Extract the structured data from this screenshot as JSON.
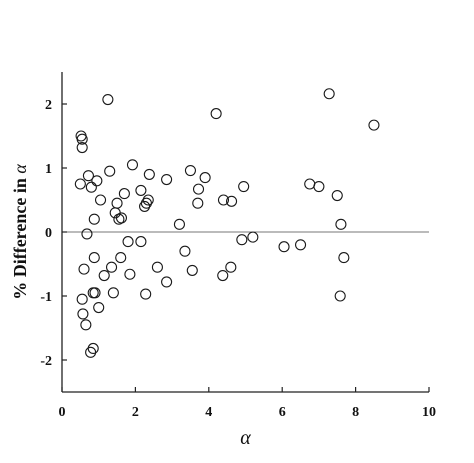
{
  "chart_data": {
    "type": "scatter",
    "title": "",
    "xlabel": "α",
    "ylabel_text": "% Difference in ",
    "ylabel_symbol": "α",
    "xlim": [
      0,
      10
    ],
    "ylim": [
      -2.5,
      2.5
    ],
    "xticks": [
      0,
      2,
      4,
      6,
      8,
      10
    ],
    "yticks": [
      2,
      1,
      0,
      -1,
      -2
    ],
    "xtick_labels": [
      "0",
      "2",
      "4",
      "6",
      "8",
      "10"
    ],
    "ytick_labels": [
      "2",
      "1",
      "0",
      "-1",
      "-2"
    ],
    "reference_line_y": 0,
    "grid": false,
    "legend": false,
    "marker": "open-circle",
    "colors": {
      "marker": "#1a1a1a",
      "axis": "#222222",
      "reference_line": "#777777"
    },
    "points": [
      {
        "x": 0.52,
        "y": 1.5
      },
      {
        "x": 0.55,
        "y": 1.45
      },
      {
        "x": 0.55,
        "y": 1.32
      },
      {
        "x": 0.5,
        "y": 0.75
      },
      {
        "x": 0.72,
        "y": 0.88
      },
      {
        "x": 0.8,
        "y": 0.7
      },
      {
        "x": 0.95,
        "y": 0.8
      },
      {
        "x": 1.25,
        "y": 2.07
      },
      {
        "x": 1.05,
        "y": 0.5
      },
      {
        "x": 1.3,
        "y": 0.95
      },
      {
        "x": 1.5,
        "y": 0.45
      },
      {
        "x": 1.7,
        "y": 0.6
      },
      {
        "x": 1.45,
        "y": 0.3
      },
      {
        "x": 1.55,
        "y": 0.2
      },
      {
        "x": 1.62,
        "y": 0.22
      },
      {
        "x": 0.88,
        "y": 0.2
      },
      {
        "x": 0.68,
        "y": -0.03
      },
      {
        "x": 1.92,
        "y": 1.05
      },
      {
        "x": 2.15,
        "y": 0.65
      },
      {
        "x": 2.25,
        "y": 0.4
      },
      {
        "x": 2.3,
        "y": 0.45
      },
      {
        "x": 2.35,
        "y": 0.5
      },
      {
        "x": 2.38,
        "y": 0.9
      },
      {
        "x": 2.85,
        "y": 0.82
      },
      {
        "x": 1.8,
        "y": -0.15
      },
      {
        "x": 2.15,
        "y": -0.15
      },
      {
        "x": 1.6,
        "y": -0.4
      },
      {
        "x": 1.35,
        "y": -0.55
      },
      {
        "x": 1.15,
        "y": -0.68
      },
      {
        "x": 0.88,
        "y": -0.4
      },
      {
        "x": 0.6,
        "y": -0.58
      },
      {
        "x": 1.85,
        "y": -0.66
      },
      {
        "x": 0.55,
        "y": -1.05
      },
      {
        "x": 0.85,
        "y": -0.95
      },
      {
        "x": 0.9,
        "y": -0.95
      },
      {
        "x": 1.4,
        "y": -0.95
      },
      {
        "x": 1.0,
        "y": -1.18
      },
      {
        "x": 0.57,
        "y": -1.28
      },
      {
        "x": 0.65,
        "y": -1.45
      },
      {
        "x": 0.85,
        "y": -1.82
      },
      {
        "x": 0.78,
        "y": -1.88
      },
      {
        "x": 2.28,
        "y": -0.97
      },
      {
        "x": 2.85,
        "y": -0.78
      },
      {
        "x": 2.6,
        "y": -0.55
      },
      {
        "x": 3.2,
        "y": 0.12
      },
      {
        "x": 3.5,
        "y": 0.96
      },
      {
        "x": 3.72,
        "y": 0.67
      },
      {
        "x": 3.9,
        "y": 0.85
      },
      {
        "x": 3.7,
        "y": 0.45
      },
      {
        "x": 3.35,
        "y": -0.3
      },
      {
        "x": 3.55,
        "y": -0.6
      },
      {
        "x": 4.2,
        "y": 1.85
      },
      {
        "x": 4.4,
        "y": 0.5
      },
      {
        "x": 4.62,
        "y": 0.48
      },
      {
        "x": 4.95,
        "y": 0.71
      },
      {
        "x": 4.9,
        "y": -0.12
      },
      {
        "x": 5.2,
        "y": -0.08
      },
      {
        "x": 4.6,
        "y": -0.55
      },
      {
        "x": 4.38,
        "y": -0.68
      },
      {
        "x": 6.05,
        "y": -0.23
      },
      {
        "x": 6.5,
        "y": -0.2
      },
      {
        "x": 6.75,
        "y": 0.75
      },
      {
        "x": 7.0,
        "y": 0.71
      },
      {
        "x": 7.28,
        "y": 2.16
      },
      {
        "x": 7.5,
        "y": 0.57
      },
      {
        "x": 7.6,
        "y": 0.12
      },
      {
        "x": 7.68,
        "y": -0.4
      },
      {
        "x": 7.58,
        "y": -1.0
      },
      {
        "x": 8.5,
        "y": 1.67
      }
    ]
  }
}
